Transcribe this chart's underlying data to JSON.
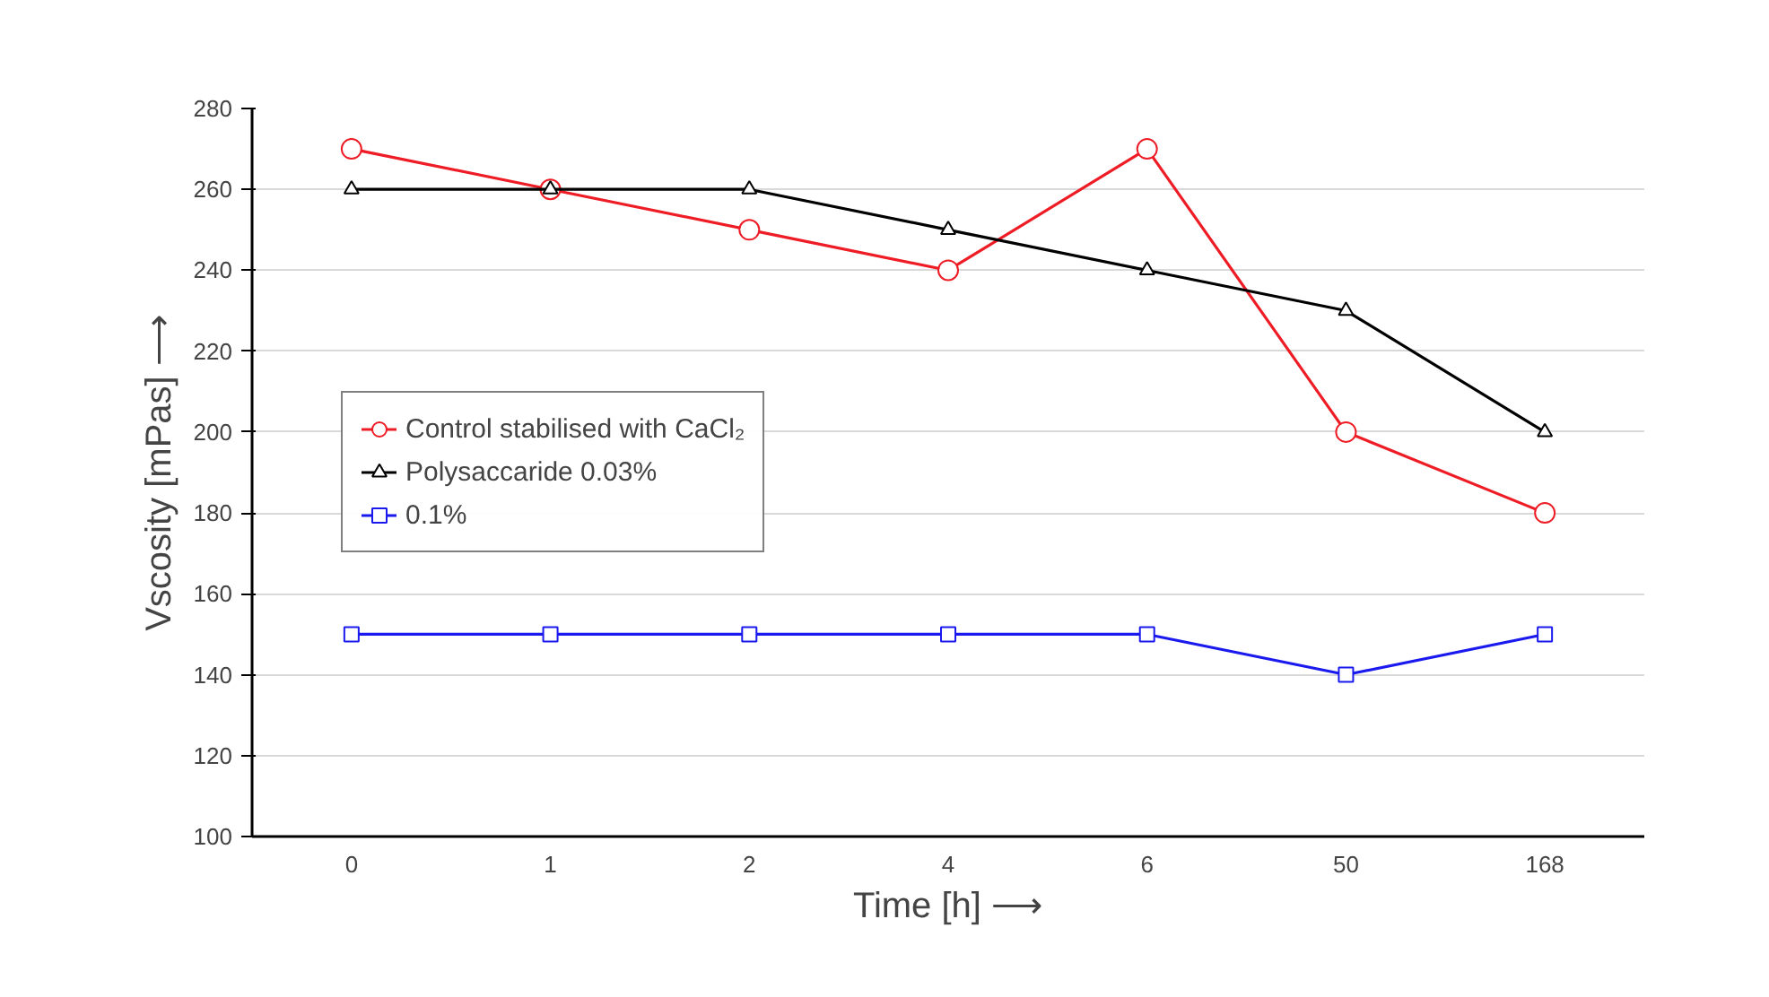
{
  "chart_data": {
    "type": "line",
    "xlabel": "Time [h] ⟶",
    "ylabel": "Vscosity [mPas] ⟶",
    "categories": [
      "0",
      "1",
      "2",
      "4",
      "6",
      "50",
      "168"
    ],
    "series": [
      {
        "name": "Control stabilised with CaCl₂",
        "color": "#ee1c25",
        "marker": "circle",
        "values": [
          270,
          260,
          250,
          240,
          270,
          200,
          180
        ]
      },
      {
        "name": "Polysaccaride 0.03%",
        "color": "#000000",
        "marker": "triangle",
        "values": [
          260,
          260,
          260,
          250,
          240,
          230,
          200
        ]
      },
      {
        "name": "0.1%",
        "color": "#1a1aee",
        "marker": "square",
        "values": [
          150,
          150,
          150,
          150,
          150,
          140,
          150
        ]
      }
    ],
    "ylim": [
      100,
      280
    ],
    "yticks": [
      100,
      120,
      140,
      160,
      180,
      200,
      220,
      240,
      260,
      280
    ],
    "grid": "y",
    "legend": "left",
    "line_style": "solid"
  }
}
